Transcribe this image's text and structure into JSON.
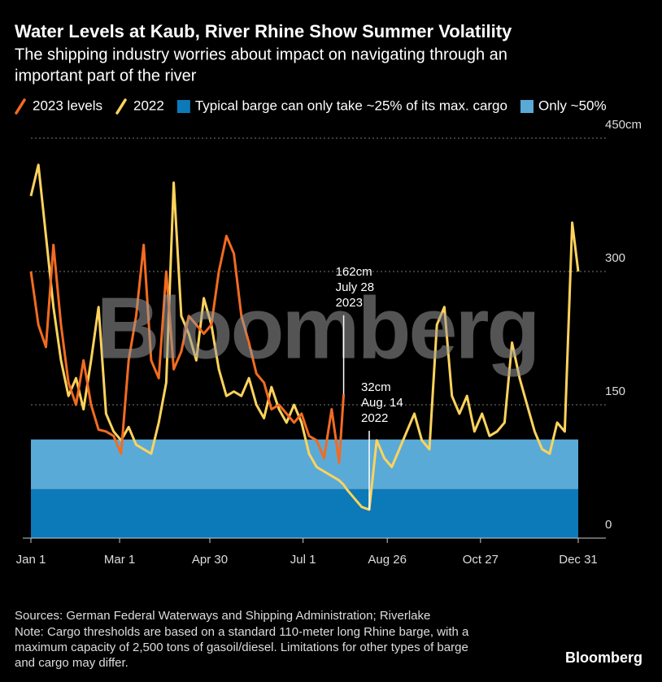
{
  "chart_data": {
    "type": "line",
    "title": "Water Levels at Kaub, River Rhine Show Summer Volatility",
    "subtitle": [
      "The shipping industry worries about impact on navigating through an",
      "important part of the river"
    ],
    "x": [
      0,
      5,
      10,
      15,
      20,
      25,
      30,
      35,
      40,
      45,
      50,
      55,
      60,
      65,
      70,
      75,
      80,
      85,
      90,
      95,
      100,
      105,
      110,
      115,
      120,
      125,
      130,
      135,
      140,
      145,
      150,
      155,
      160,
      165,
      170,
      175,
      180,
      185,
      190,
      195,
      200,
      205,
      208,
      210,
      215,
      220,
      225,
      230,
      235,
      240,
      245,
      250,
      255,
      260,
      265,
      270,
      275,
      280,
      285,
      290,
      295,
      300,
      305,
      310,
      315,
      320,
      325,
      330,
      335,
      340,
      345,
      350,
      355,
      360,
      364
    ],
    "series": [
      {
        "name": "2023 levels",
        "color": "#f26b21",
        "values": [
          300,
          240,
          215,
          330,
          240,
          175,
          150,
          200,
          150,
          122,
          120,
          115,
          95,
          200,
          250,
          330,
          200,
          180,
          300,
          190,
          210,
          250,
          240,
          230,
          240,
          300,
          340,
          320,
          250,
          220,
          185,
          175,
          145,
          150,
          140,
          130,
          140,
          115,
          110,
          90,
          145,
          85,
          162,
          null,
          null,
          null,
          null,
          null,
          null,
          null,
          null,
          null,
          null,
          null,
          null,
          null,
          null,
          null,
          null,
          null,
          null,
          null,
          null,
          null,
          null,
          null,
          null,
          null,
          null,
          null,
          null,
          null,
          null,
          null,
          null
        ]
      },
      {
        "name": "2022",
        "color": "#fdd35c",
        "values": [
          385,
          420,
          340,
          260,
          200,
          160,
          180,
          145,
          200,
          260,
          140,
          120,
          110,
          125,
          105,
          100,
          95,
          130,
          175,
          400,
          250,
          230,
          200,
          270,
          240,
          190,
          160,
          165,
          160,
          180,
          150,
          135,
          170,
          145,
          130,
          150,
          130,
          95,
          80,
          75,
          70,
          65,
          60,
          55,
          45,
          35,
          32,
          110,
          90,
          80,
          100,
          120,
          140,
          110,
          100,
          240,
          260,
          160,
          140,
          160,
          120,
          140,
          115,
          120,
          130,
          220,
          180,
          150,
          120,
          100,
          95,
          130,
          120,
          355,
          300
        ]
      }
    ],
    "bands": [
      {
        "name": "Typical barge can only take ~25% of its max. cargo",
        "color": "#0c79b8",
        "from": 0,
        "to": 55
      },
      {
        "name": "Only ~50%",
        "color": "#5aaad8",
        "from": 55,
        "to": 111
      }
    ],
    "xlim": [
      0,
      364
    ],
    "xticks": [
      {
        "value": 0,
        "label": "Jan 1"
      },
      {
        "value": 59,
        "label": "Mar 1"
      },
      {
        "value": 119,
        "label": "Apr 30"
      },
      {
        "value": 181,
        "label": "Jul 1"
      },
      {
        "value": 237,
        "label": "Aug 26"
      },
      {
        "value": 299,
        "label": "Oct 27"
      },
      {
        "value": 364,
        "label": "Dec 31"
      }
    ],
    "ylim": [
      0,
      450
    ],
    "yticks": [
      0,
      150,
      300,
      {
        "value": 450,
        "label": "450cm"
      }
    ],
    "grid": true,
    "annotations": [
      {
        "x": 208,
        "y": 162,
        "lines": [
          "162cm",
          "July 28",
          "2023"
        ]
      },
      {
        "x": 225,
        "y": 32,
        "lines": [
          "32cm",
          "Aug. 14",
          "2022"
        ]
      }
    ],
    "watermark": "Bloomberg",
    "source": "Sources: German Federal Waterways and Shipping Administration; Riverlake",
    "note": [
      "Note: Cargo thresholds are based on a standard 110-meter long Rhine barge, with a",
      "maximum capacity of 2,500 tons of gasoil/diesel. Limitations for other types of barge",
      "and cargo may differ."
    ],
    "brand": "Bloomberg"
  }
}
